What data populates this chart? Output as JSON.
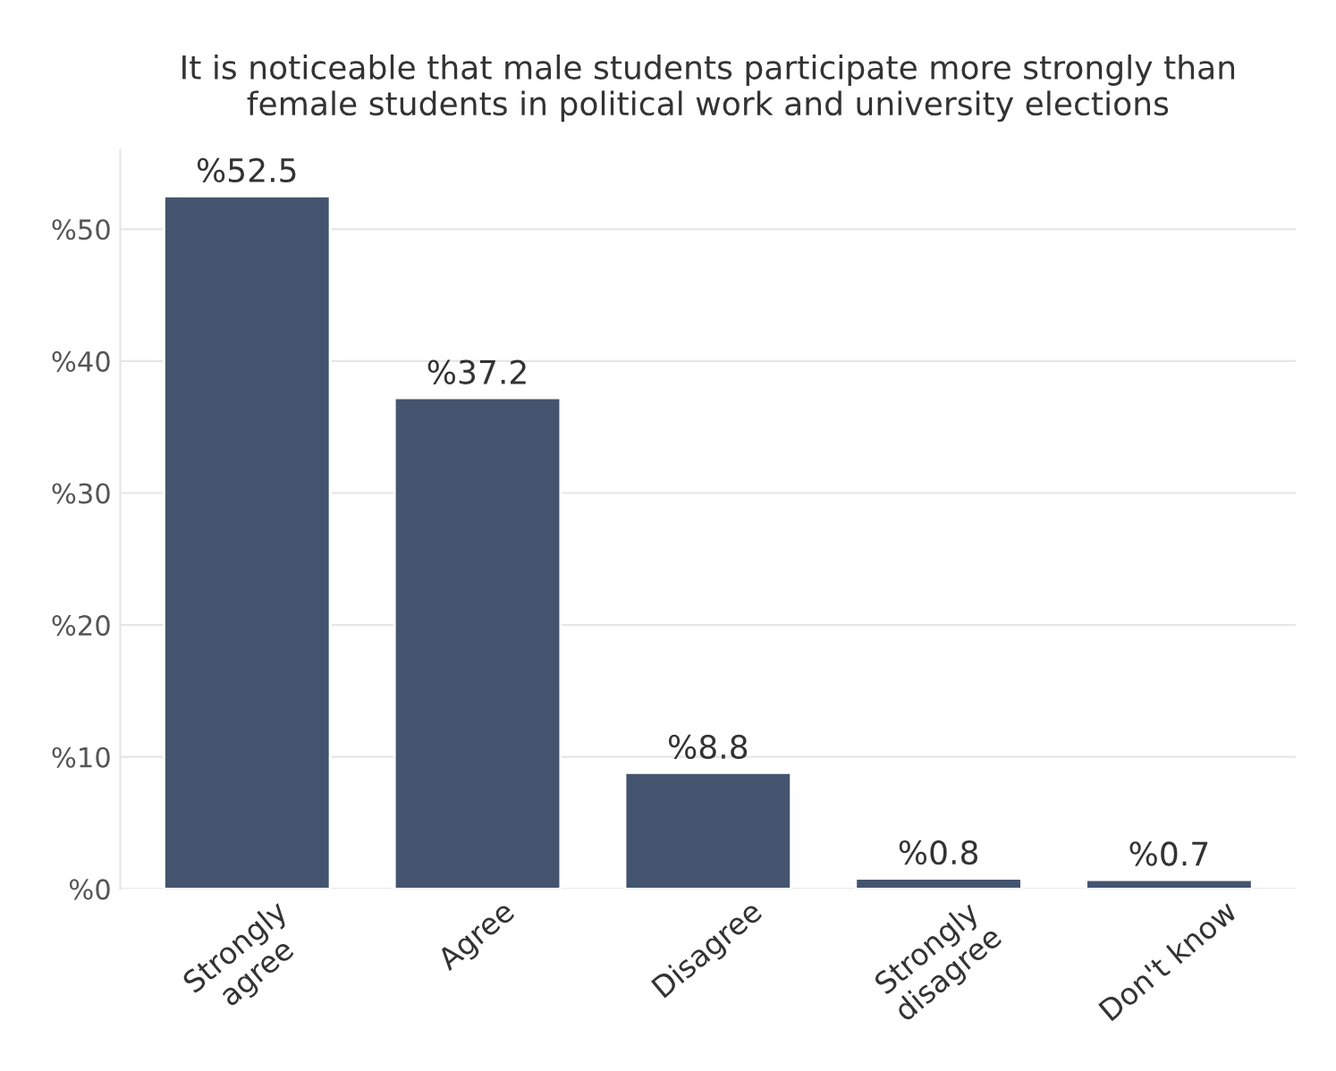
{
  "chart_data": {
    "type": "bar",
    "title": "It is noticeable that male students participate more strongly than\nfemale students in political work and university elections",
    "categories": [
      "Strongly\nagree",
      "Agree",
      "Disagree",
      "Strongly\ndisagree",
      "Don't know"
    ],
    "values": [
      52.5,
      37.2,
      8.8,
      0.8,
      0.7
    ],
    "value_labels": [
      "%52.5",
      "%37.2",
      "%8.8",
      "%0.8",
      "%0.7"
    ],
    "color": "#44546f",
    "ylim": [
      0,
      56
    ],
    "yticks": [
      {
        "value": 0,
        "label": "%0"
      },
      {
        "value": 10,
        "label": "%10"
      },
      {
        "value": 20,
        "label": "%20"
      },
      {
        "value": 30,
        "label": "%30"
      },
      {
        "value": 40,
        "label": "%40"
      },
      {
        "value": 50,
        "label": "%50"
      }
    ],
    "grid": "y"
  }
}
